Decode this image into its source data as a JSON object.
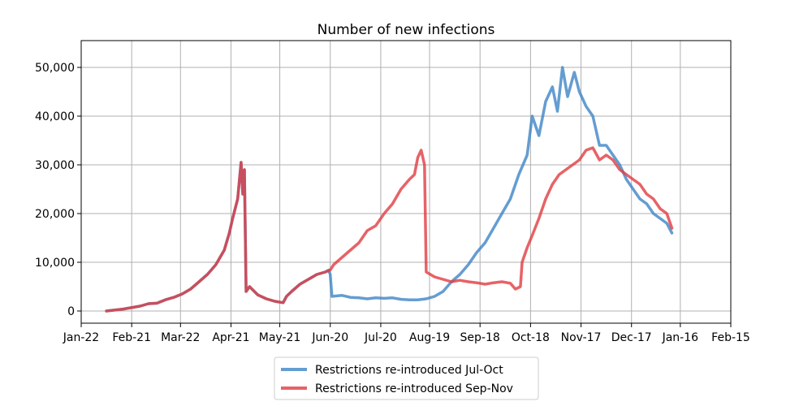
{
  "chart_data": {
    "type": "line",
    "title": "Number of new infections",
    "xlabel": "",
    "ylabel": "",
    "x_tick_labels": [
      "Jan-22",
      "Feb-21",
      "Mar-22",
      "Apr-21",
      "May-21",
      "Jun-20",
      "Jul-20",
      "Aug-19",
      "Sep-18",
      "Oct-18",
      "Nov-17",
      "Dec-17",
      "Jan-16",
      "Feb-15"
    ],
    "x_ticks_day": [
      0,
      30,
      59,
      89,
      118,
      148,
      178,
      207,
      237,
      267,
      297,
      327,
      356,
      386
    ],
    "y_tick_values": [
      0,
      10000,
      20000,
      30000,
      40000,
      50000
    ],
    "y_tick_labels": [
      "0",
      "10,000",
      "20,000",
      "30,000",
      "40,000",
      "50,000"
    ],
    "xlim_day": [
      0,
      386
    ],
    "ylim": [
      -2500,
      55500
    ],
    "grid": true,
    "legend_position": "below",
    "series": [
      {
        "name": "Restrictions re-introduced Jul-Oct",
        "color": "#3d85c6",
        "points_day_value": [
          [
            15,
            0
          ],
          [
            25,
            400
          ],
          [
            35,
            1000
          ],
          [
            40,
            1500
          ],
          [
            45,
            1600
          ],
          [
            50,
            2300
          ],
          [
            55,
            2800
          ],
          [
            60,
            3500
          ],
          [
            65,
            4500
          ],
          [
            70,
            6000
          ],
          [
            75,
            7500
          ],
          [
            80,
            9500
          ],
          [
            85,
            12500
          ],
          [
            88,
            16000
          ],
          [
            90,
            19000
          ],
          [
            93,
            23000
          ],
          [
            95,
            30500
          ],
          [
            96,
            24000
          ],
          [
            97,
            29000
          ],
          [
            98,
            4000
          ],
          [
            100,
            5000
          ],
          [
            105,
            3300
          ],
          [
            110,
            2500
          ],
          [
            115,
            2000
          ],
          [
            120,
            1700
          ],
          [
            122,
            3000
          ],
          [
            125,
            4000
          ],
          [
            130,
            5500
          ],
          [
            135,
            6500
          ],
          [
            140,
            7500
          ],
          [
            145,
            8000
          ],
          [
            147,
            8400
          ],
          [
            148,
            7500
          ],
          [
            149,
            3000
          ],
          [
            155,
            3200
          ],
          [
            160,
            2800
          ],
          [
            165,
            2700
          ],
          [
            170,
            2500
          ],
          [
            175,
            2700
          ],
          [
            180,
            2600
          ],
          [
            185,
            2700
          ],
          [
            190,
            2400
          ],
          [
            195,
            2300
          ],
          [
            200,
            2300
          ],
          [
            205,
            2500
          ],
          [
            210,
            3000
          ],
          [
            215,
            4000
          ],
          [
            220,
            6000
          ],
          [
            225,
            7500
          ],
          [
            230,
            9500
          ],
          [
            235,
            12000
          ],
          [
            240,
            14000
          ],
          [
            245,
            17000
          ],
          [
            250,
            20000
          ],
          [
            255,
            23000
          ],
          [
            260,
            28000
          ],
          [
            265,
            32000
          ],
          [
            268,
            40000
          ],
          [
            272,
            36000
          ],
          [
            276,
            43000
          ],
          [
            280,
            46000
          ],
          [
            283,
            41000
          ],
          [
            286,
            50000
          ],
          [
            289,
            44000
          ],
          [
            293,
            49000
          ],
          [
            296,
            45000
          ],
          [
            300,
            42000
          ],
          [
            304,
            40000
          ],
          [
            308,
            34000
          ],
          [
            312,
            34000
          ],
          [
            316,
            32000
          ],
          [
            320,
            30000
          ],
          [
            324,
            27000
          ],
          [
            328,
            25000
          ],
          [
            332,
            23000
          ],
          [
            336,
            22000
          ],
          [
            340,
            20000
          ],
          [
            344,
            19000
          ],
          [
            348,
            18000
          ],
          [
            351,
            16000
          ]
        ]
      },
      {
        "name": "Restrictions re-introduced Sep-Nov",
        "color": "#e03c41",
        "points_day_value": [
          [
            15,
            0
          ],
          [
            25,
            400
          ],
          [
            35,
            1000
          ],
          [
            40,
            1500
          ],
          [
            45,
            1600
          ],
          [
            50,
            2300
          ],
          [
            55,
            2800
          ],
          [
            60,
            3500
          ],
          [
            65,
            4500
          ],
          [
            70,
            6000
          ],
          [
            75,
            7500
          ],
          [
            80,
            9500
          ],
          [
            85,
            12500
          ],
          [
            88,
            16000
          ],
          [
            90,
            19000
          ],
          [
            93,
            23000
          ],
          [
            95,
            30500
          ],
          [
            96,
            24000
          ],
          [
            97,
            29000
          ],
          [
            98,
            4000
          ],
          [
            100,
            5000
          ],
          [
            105,
            3300
          ],
          [
            110,
            2500
          ],
          [
            115,
            2000
          ],
          [
            120,
            1700
          ],
          [
            122,
            3000
          ],
          [
            125,
            4000
          ],
          [
            130,
            5500
          ],
          [
            135,
            6500
          ],
          [
            140,
            7500
          ],
          [
            145,
            8000
          ],
          [
            148,
            8400
          ],
          [
            150,
            9500
          ],
          [
            155,
            11000
          ],
          [
            160,
            12500
          ],
          [
            165,
            14000
          ],
          [
            170,
            16500
          ],
          [
            175,
            17500
          ],
          [
            180,
            20000
          ],
          [
            185,
            22000
          ],
          [
            190,
            25000
          ],
          [
            195,
            27000
          ],
          [
            198,
            28000
          ],
          [
            200,
            31500
          ],
          [
            202,
            33000
          ],
          [
            204,
            30000
          ],
          [
            205,
            8000
          ],
          [
            210,
            7000
          ],
          [
            215,
            6500
          ],
          [
            220,
            6000
          ],
          [
            225,
            6300
          ],
          [
            230,
            6000
          ],
          [
            235,
            5800
          ],
          [
            240,
            5500
          ],
          [
            245,
            5800
          ],
          [
            250,
            6000
          ],
          [
            255,
            5700
          ],
          [
            258,
            4500
          ],
          [
            261,
            5000
          ],
          [
            262,
            10000
          ],
          [
            265,
            13000
          ],
          [
            268,
            15500
          ],
          [
            272,
            19000
          ],
          [
            276,
            23000
          ],
          [
            280,
            26000
          ],
          [
            284,
            28000
          ],
          [
            288,
            29000
          ],
          [
            292,
            30000
          ],
          [
            296,
            31000
          ],
          [
            300,
            33000
          ],
          [
            304,
            33500
          ],
          [
            308,
            31000
          ],
          [
            312,
            32000
          ],
          [
            316,
            31000
          ],
          [
            320,
            29000
          ],
          [
            324,
            28000
          ],
          [
            328,
            27000
          ],
          [
            332,
            26000
          ],
          [
            336,
            24000
          ],
          [
            340,
            23000
          ],
          [
            344,
            21000
          ],
          [
            348,
            20000
          ],
          [
            351,
            17000
          ]
        ]
      }
    ]
  }
}
